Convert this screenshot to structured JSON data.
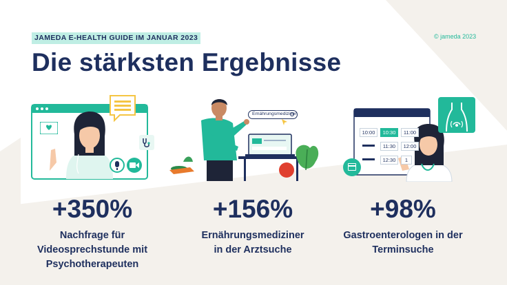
{
  "header": {
    "tag": "JAMEDA E-HEALTH GUIDE IM JANUAR 2023",
    "copyright": "© jameda 2023",
    "title": "Die stärksten Ergebnisse"
  },
  "stats": [
    {
      "value": "+350%",
      "line1": "Nachfrage für",
      "line2": "Videosprechstunde mit",
      "line3": "Psychotherapeuten"
    },
    {
      "value": "+156%",
      "line1": "Ernährungsmediziner",
      "line2": "in der Arztsuche"
    },
    {
      "value": "+98%",
      "line1": "Gastroenterologen in der",
      "line2": "Terminsuche"
    }
  ],
  "illustration_2": {
    "search_label": "Ernährungsmediziner"
  },
  "illustration_3": {
    "slots": [
      "10:00",
      "10:30",
      "11:00",
      "11:30",
      "12:00",
      "12:30",
      "1"
    ],
    "selected": "10:30"
  },
  "colors": {
    "navy": "#1e2f5e",
    "teal": "#22b99a",
    "mint": "#bfeee4",
    "beige": "#f4f1ec"
  },
  "icons": [
    "heart-monitor-icon",
    "stethoscope-icon",
    "microphone-icon",
    "video-camera-icon",
    "search-icon",
    "calendar-icon",
    "body-scan-icon"
  ]
}
